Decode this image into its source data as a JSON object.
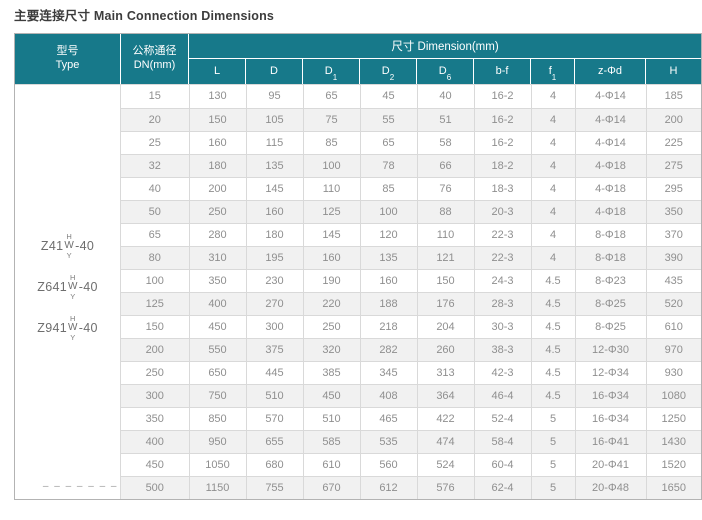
{
  "title": "主要连接尺寸 Main Connection Dimensions",
  "colors": {
    "header_bg": "#17798a",
    "alt_row": "#f1f1f1"
  },
  "table": {
    "header": {
      "type_zh": "型号",
      "type_en": "Type",
      "dn_zh": "公称通径",
      "dn_en": "DN(mm)",
      "dimension": "尺寸 Dimension(mm)",
      "columns": [
        {
          "main": "L",
          "sub": ""
        },
        {
          "main": "D",
          "sub": ""
        },
        {
          "main": "D",
          "sub": "1"
        },
        {
          "main": "D",
          "sub": "2"
        },
        {
          "main": "D",
          "sub": "6"
        },
        {
          "main": "b-f",
          "sub": ""
        },
        {
          "main": "f",
          "sub": "1"
        },
        {
          "main": "z-Φd",
          "sub": ""
        },
        {
          "main": "H",
          "sub": ""
        }
      ]
    },
    "type_models": [
      {
        "pre": "Z41",
        "sup": "H",
        "mid": "W",
        "sub": "Y",
        "post": "-40"
      },
      {
        "pre": "Z641",
        "sup": "H",
        "mid": "W",
        "sub": "Y",
        "post": "-40"
      },
      {
        "pre": "Z941",
        "sup": "H",
        "mid": "W",
        "sub": "Y",
        "post": "-40"
      }
    ],
    "type_dashes": "– – – – – – –",
    "rows": [
      {
        "dn": "15",
        "values": [
          "130",
          "95",
          "65",
          "45",
          "40",
          "16-2",
          "4",
          "4-Φ14",
          "185"
        ]
      },
      {
        "dn": "20",
        "values": [
          "150",
          "105",
          "75",
          "55",
          "51",
          "16-2",
          "4",
          "4-Φ14",
          "200"
        ]
      },
      {
        "dn": "25",
        "values": [
          "160",
          "115",
          "85",
          "65",
          "58",
          "16-2",
          "4",
          "4-Φ14",
          "225"
        ]
      },
      {
        "dn": "32",
        "values": [
          "180",
          "135",
          "100",
          "78",
          "66",
          "18-2",
          "4",
          "4-Φ18",
          "275"
        ]
      },
      {
        "dn": "40",
        "values": [
          "200",
          "145",
          "110",
          "85",
          "76",
          "18-3",
          "4",
          "4-Φ18",
          "295"
        ]
      },
      {
        "dn": "50",
        "values": [
          "250",
          "160",
          "125",
          "100",
          "88",
          "20-3",
          "4",
          "4-Φ18",
          "350"
        ]
      },
      {
        "dn": "65",
        "values": [
          "280",
          "180",
          "145",
          "120",
          "110",
          "22-3",
          "4",
          "8-Φ18",
          "370"
        ]
      },
      {
        "dn": "80",
        "values": [
          "310",
          "195",
          "160",
          "135",
          "121",
          "22-3",
          "4",
          "8-Φ18",
          "390"
        ]
      },
      {
        "dn": "100",
        "values": [
          "350",
          "230",
          "190",
          "160",
          "150",
          "24-3",
          "4.5",
          "8-Φ23",
          "435"
        ]
      },
      {
        "dn": "125",
        "values": [
          "400",
          "270",
          "220",
          "188",
          "176",
          "28-3",
          "4.5",
          "8-Φ25",
          "520"
        ]
      },
      {
        "dn": "150",
        "values": [
          "450",
          "300",
          "250",
          "218",
          "204",
          "30-3",
          "4.5",
          "8-Φ25",
          "610"
        ]
      },
      {
        "dn": "200",
        "values": [
          "550",
          "375",
          "320",
          "282",
          "260",
          "38-3",
          "4.5",
          "12-Φ30",
          "970"
        ]
      },
      {
        "dn": "250",
        "values": [
          "650",
          "445",
          "385",
          "345",
          "313",
          "42-3",
          "4.5",
          "12-Φ34",
          "930"
        ]
      },
      {
        "dn": "300",
        "values": [
          "750",
          "510",
          "450",
          "408",
          "364",
          "46-4",
          "4.5",
          "16-Φ34",
          "1080"
        ]
      },
      {
        "dn": "350",
        "values": [
          "850",
          "570",
          "510",
          "465",
          "422",
          "52-4",
          "5",
          "16-Φ34",
          "1250"
        ]
      },
      {
        "dn": "400",
        "values": [
          "950",
          "655",
          "585",
          "535",
          "474",
          "58-4",
          "5",
          "16-Φ41",
          "1430"
        ]
      },
      {
        "dn": "450",
        "values": [
          "1050",
          "680",
          "610",
          "560",
          "524",
          "60-4",
          "5",
          "20-Φ41",
          "1520"
        ]
      },
      {
        "dn": "500",
        "values": [
          "1150",
          "755",
          "670",
          "612",
          "576",
          "62-4",
          "5",
          "20-Φ48",
          "1650"
        ]
      }
    ]
  }
}
